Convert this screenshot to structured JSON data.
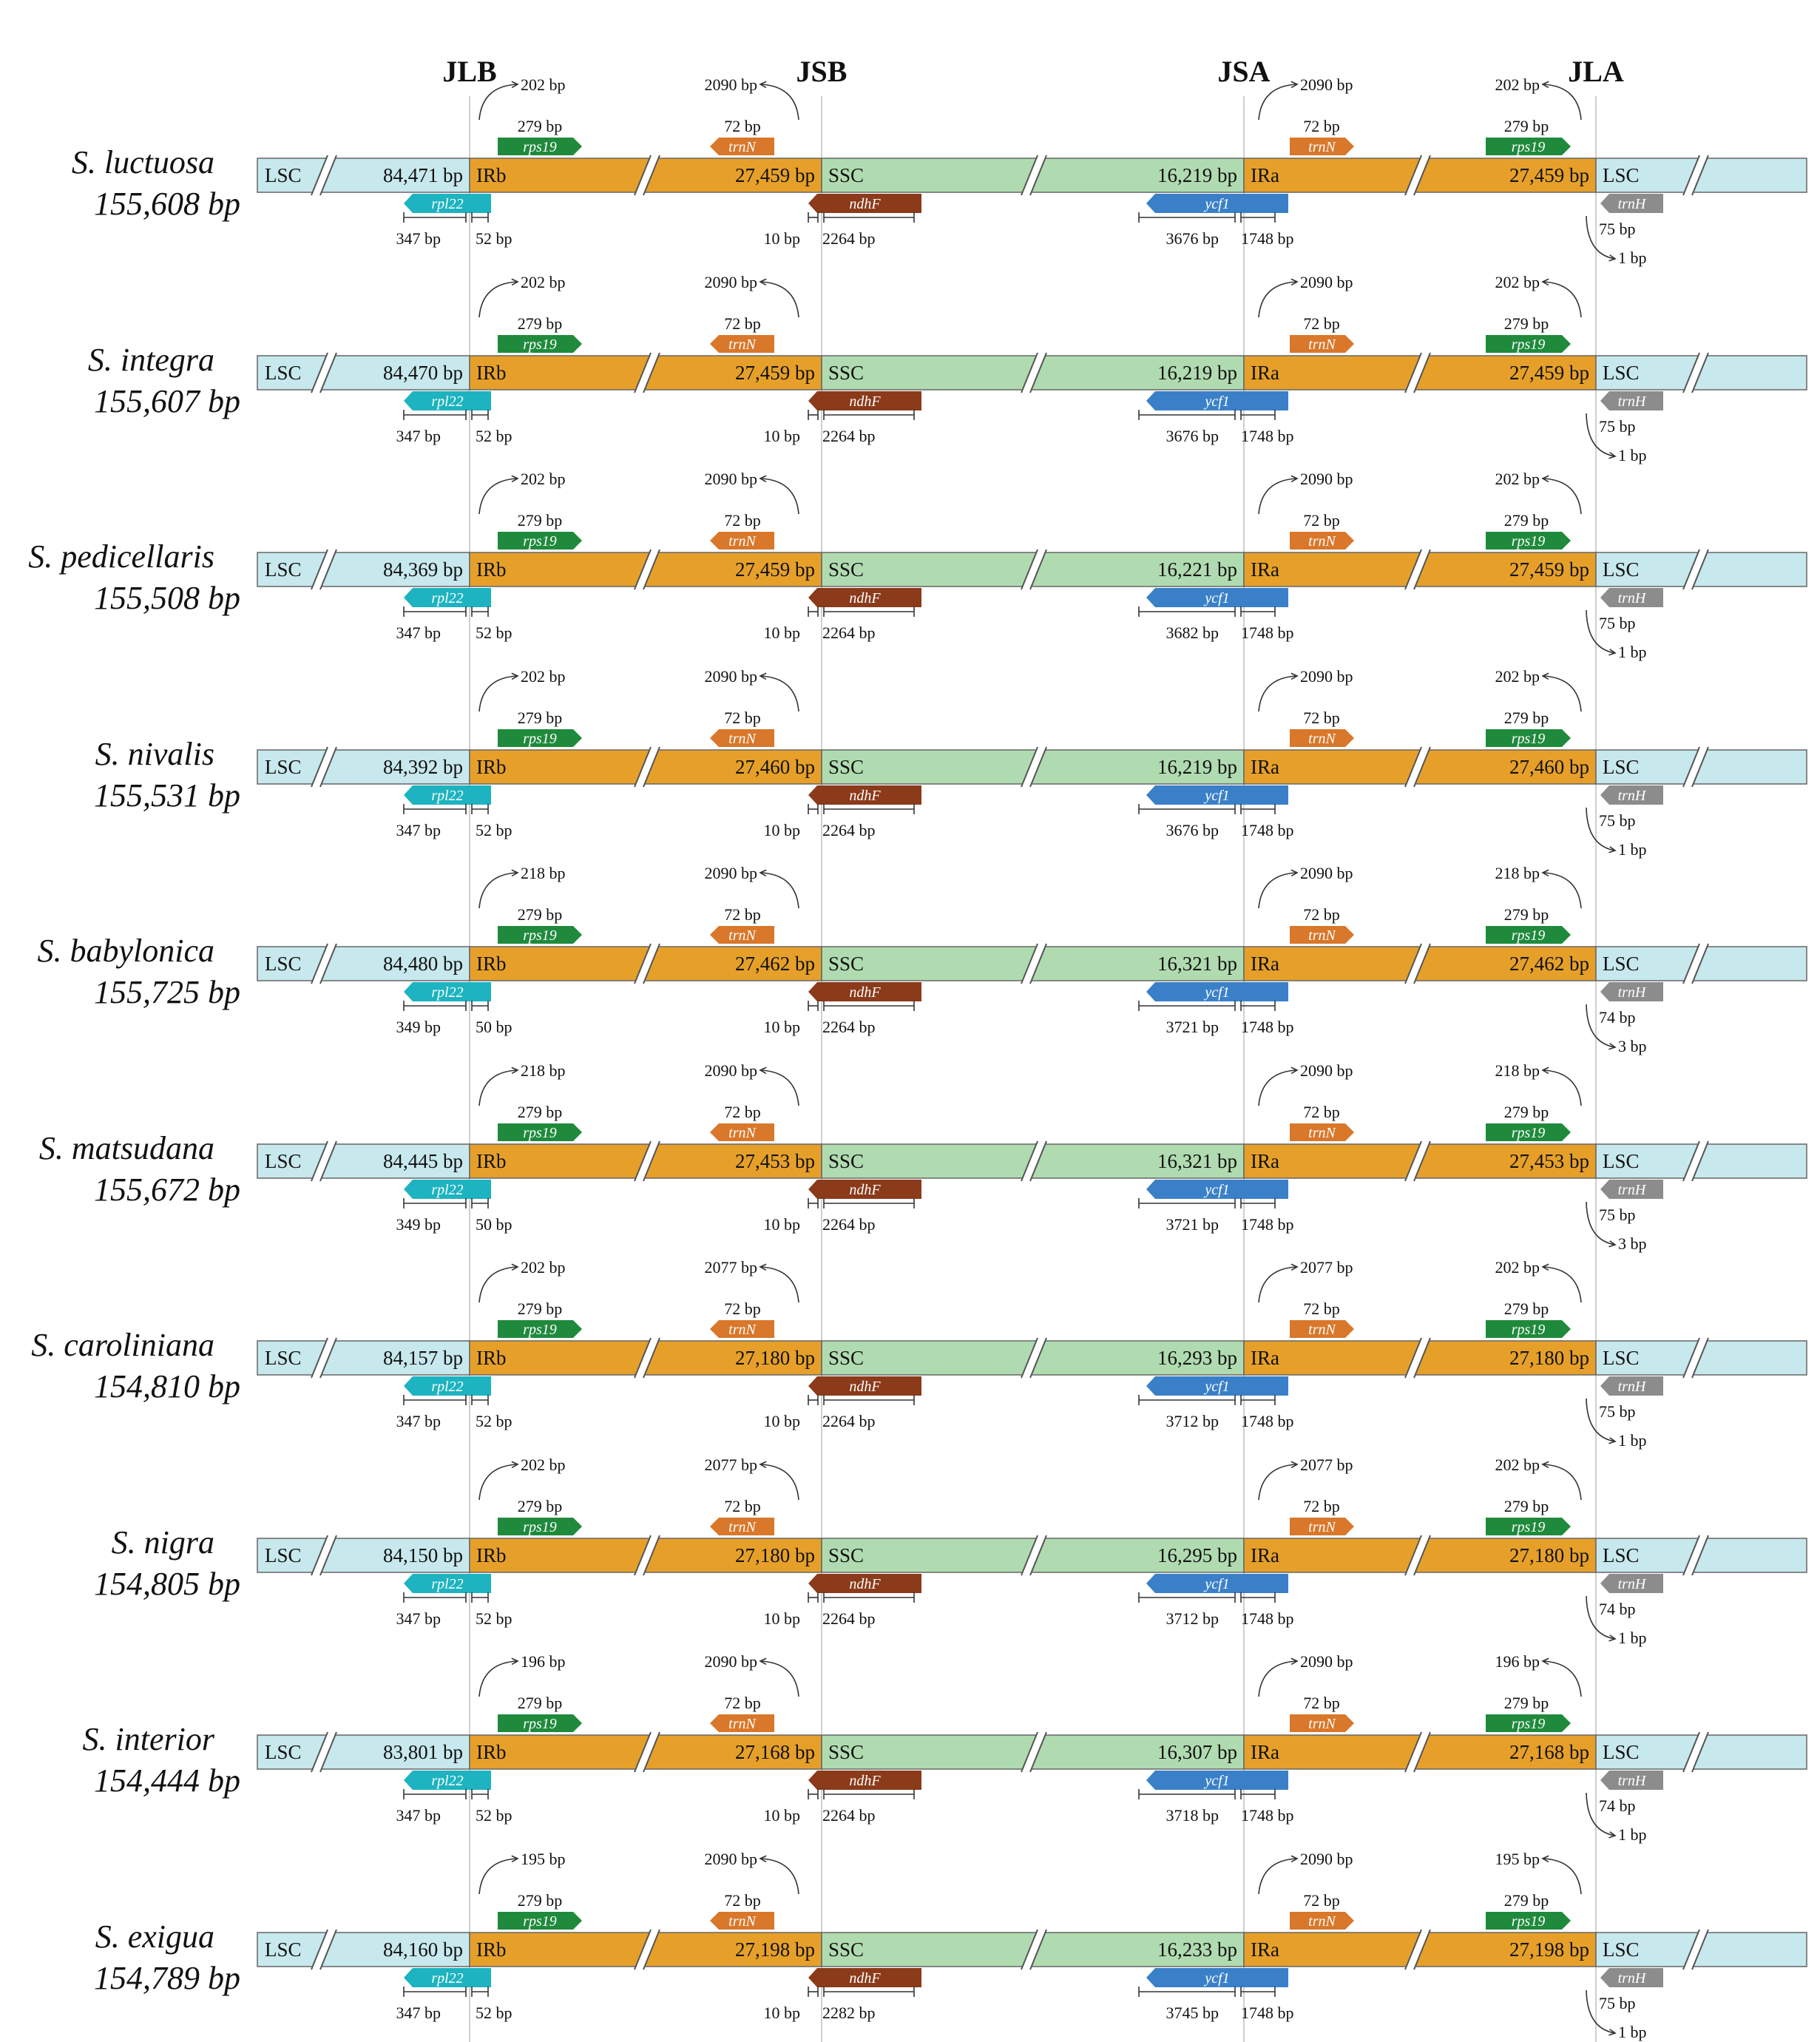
{
  "junctions": [
    "JLB",
    "JSB",
    "JSA",
    "JLA"
  ],
  "region_labels": {
    "lsc": "LSC",
    "irb": "IRb",
    "ssc": "SSC",
    "ira": "IRa"
  },
  "genes": {
    "rps19": "rps19",
    "trnN": "trnN",
    "rpl22": "rpl22",
    "ndhF": "ndhF",
    "ycf1": "ycf1",
    "trnH": "trnH"
  },
  "colors": {
    "lsc": "#c7e8ec",
    "ir": "#e6a02a",
    "ssc": "#b0dbb0",
    "rps19": "#1f8a3c",
    "trnN": "#d9772a",
    "rpl22": "#1db3c0",
    "ndhF": "#8b3a1a",
    "ycf1": "#3a80c8",
    "trnH": "#8c8c8c",
    "junction_line": "#cfcfcf"
  },
  "species": [
    {
      "name": "S. luctuosa",
      "size": "155,608 bp",
      "lsc_len": "84,471 bp",
      "ir_len": "27,459 bp",
      "ssc_len": "16,219 bp",
      "rps19_over": "202 bp",
      "rps19_len": "279 bp",
      "trnN_over": "2090 bp",
      "trnN_len": "72 bp",
      "rpl22_a": "347 bp",
      "rpl22_b": "52 bp",
      "ndhF_a": "10 bp",
      "ndhF_b": "2264 bp",
      "ycf1_a": "3676 bp",
      "ycf1_b": "1748 bp",
      "trnH_len": "75 bp",
      "trnH_over": "1 bp"
    },
    {
      "name": "S. integra",
      "size": "155,607 bp",
      "lsc_len": "84,470 bp",
      "ir_len": "27,459 bp",
      "ssc_len": "16,219 bp",
      "rps19_over": "202 bp",
      "rps19_len": "279 bp",
      "trnN_over": "2090 bp",
      "trnN_len": "72 bp",
      "rpl22_a": "347 bp",
      "rpl22_b": "52 bp",
      "ndhF_a": "10 bp",
      "ndhF_b": "2264 bp",
      "ycf1_a": "3676 bp",
      "ycf1_b": "1748 bp",
      "trnH_len": "75 bp",
      "trnH_over": "1 bp"
    },
    {
      "name": "S. pedicellaris",
      "size": "155,508 bp",
      "lsc_len": "84,369 bp",
      "ir_len": "27,459 bp",
      "ssc_len": "16,221 bp",
      "rps19_over": "202 bp",
      "rps19_len": "279 bp",
      "trnN_over": "2090 bp",
      "trnN_len": "72 bp",
      "rpl22_a": "347 bp",
      "rpl22_b": "52 bp",
      "ndhF_a": "10 bp",
      "ndhF_b": "2264 bp",
      "ycf1_a": "3682 bp",
      "ycf1_b": "1748 bp",
      "trnH_len": "75 bp",
      "trnH_over": "1 bp"
    },
    {
      "name": "S. nivalis",
      "size": "155,531 bp",
      "lsc_len": "84,392 bp",
      "ir_len": "27,460 bp",
      "ssc_len": "16,219 bp",
      "rps19_over": "202 bp",
      "rps19_len": "279 bp",
      "trnN_over": "2090 bp",
      "trnN_len": "72 bp",
      "rpl22_a": "347 bp",
      "rpl22_b": "52 bp",
      "ndhF_a": "10 bp",
      "ndhF_b": "2264 bp",
      "ycf1_a": "3676 bp",
      "ycf1_b": "1748 bp",
      "trnH_len": "75 bp",
      "trnH_over": "1 bp"
    },
    {
      "name": "S. babylonica",
      "size": "155,725 bp",
      "lsc_len": "84,480 bp",
      "ir_len": "27,462 bp",
      "ssc_len": "16,321 bp",
      "rps19_over": "218 bp",
      "rps19_len": "279 bp",
      "trnN_over": "2090 bp",
      "trnN_len": "72 bp",
      "rpl22_a": "349 bp",
      "rpl22_b": "50 bp",
      "ndhF_a": "10 bp",
      "ndhF_b": "2264 bp",
      "ycf1_a": "3721 bp",
      "ycf1_b": "1748 bp",
      "trnH_len": "74 bp",
      "trnH_over": "3 bp"
    },
    {
      "name": "S. matsudana",
      "size": "155,672 bp",
      "lsc_len": "84,445 bp",
      "ir_len": "27,453 bp",
      "ssc_len": "16,321 bp",
      "rps19_over": "218 bp",
      "rps19_len": "279 bp",
      "trnN_over": "2090 bp",
      "trnN_len": "72 bp",
      "rpl22_a": "349 bp",
      "rpl22_b": "50 bp",
      "ndhF_a": "10 bp",
      "ndhF_b": "2264 bp",
      "ycf1_a": "3721 bp",
      "ycf1_b": "1748 bp",
      "trnH_len": "75 bp",
      "trnH_over": "3 bp"
    },
    {
      "name": "S. caroliniana",
      "size": "154,810 bp",
      "lsc_len": "84,157 bp",
      "ir_len": "27,180 bp",
      "ssc_len": "16,293 bp",
      "rps19_over": "202 bp",
      "rps19_len": "279 bp",
      "trnN_over": "2077 bp",
      "trnN_len": "72 bp",
      "rpl22_a": "347 bp",
      "rpl22_b": "52 bp",
      "ndhF_a": "10 bp",
      "ndhF_b": "2264 bp",
      "ycf1_a": "3712 bp",
      "ycf1_b": "1748 bp",
      "trnH_len": "75 bp",
      "trnH_over": "1 bp"
    },
    {
      "name": "S. nigra",
      "size": "154,805 bp",
      "lsc_len": "84,150 bp",
      "ir_len": "27,180 bp",
      "ssc_len": "16,295 bp",
      "rps19_over": "202 bp",
      "rps19_len": "279 bp",
      "trnN_over": "2077 bp",
      "trnN_len": "72 bp",
      "rpl22_a": "347 bp",
      "rpl22_b": "52 bp",
      "ndhF_a": "10 bp",
      "ndhF_b": "2264 bp",
      "ycf1_a": "3712 bp",
      "ycf1_b": "1748 bp",
      "trnH_len": "74 bp",
      "trnH_over": "1 bp"
    },
    {
      "name": "S. interior",
      "size": "154,444 bp",
      "lsc_len": "83,801 bp",
      "ir_len": "27,168 bp",
      "ssc_len": "16,307 bp",
      "rps19_over": "196 bp",
      "rps19_len": "279 bp",
      "trnN_over": "2090 bp",
      "trnN_len": "72 bp",
      "rpl22_a": "347 bp",
      "rpl22_b": "52 bp",
      "ndhF_a": "10 bp",
      "ndhF_b": "2264 bp",
      "ycf1_a": "3718 bp",
      "ycf1_b": "1748 bp",
      "trnH_len": "74 bp",
      "trnH_over": "1 bp"
    },
    {
      "name": "S. exigua",
      "size": "154,789 bp",
      "lsc_len": "84,160 bp",
      "ir_len": "27,198 bp",
      "ssc_len": "16,233 bp",
      "rps19_over": "195 bp",
      "rps19_len": "279 bp",
      "trnN_over": "2090 bp",
      "trnN_len": "72 bp",
      "rpl22_a": "347 bp",
      "rpl22_b": "52 bp",
      "ndhF_a": "10 bp",
      "ndhF_b": "2282 bp",
      "ycf1_a": "3745 bp",
      "ycf1_b": "1748 bp",
      "trnH_len": "75 bp",
      "trnH_over": "1 bp"
    }
  ]
}
